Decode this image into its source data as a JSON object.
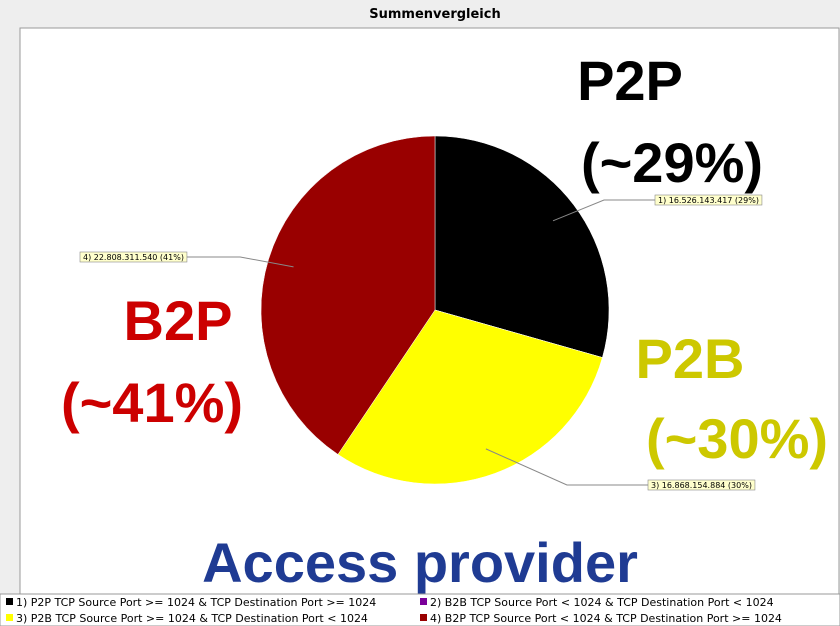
{
  "chart_data": {
    "type": "pie",
    "title": "Summenvergleich",
    "categories": [
      "1) P2P TCP Source Port >= 1024 & TCP Destination Port >= 1024",
      "2) B2B TCP Source Port < 1024 & TCP Destination Port < 1024",
      "3) P2B TCP Source Port >= 1024 & TCP Destination Port < 1024",
      "4) B2P TCP Source Port < 1024 & TCP Destination Port >= 1024"
    ],
    "values": [
      16526143417,
      0,
      16868154884,
      22808311540
    ],
    "value_labels": [
      "1) 16.526.143.417 (29%)",
      null,
      "3) 16.868.154.884 (30%)",
      "4) 22.808.311.540 (41%)"
    ],
    "colors": [
      "#000000",
      "#7a0099",
      "#ffff00",
      "#990000"
    ],
    "annotations": [
      {
        "text": "P2P",
        "color": "#000000"
      },
      {
        "text": "(~29%)",
        "color": "#000000"
      },
      {
        "text": "P2B",
        "color": "#cdc800"
      },
      {
        "text": "(~30%)",
        "color": "#cdc800"
      },
      {
        "text": "B2P",
        "color": "#cc0000"
      },
      {
        "text": "(~41%)",
        "color": "#cc0000"
      },
      {
        "text": "Access provider",
        "color": "#1f3b93"
      }
    ]
  }
}
